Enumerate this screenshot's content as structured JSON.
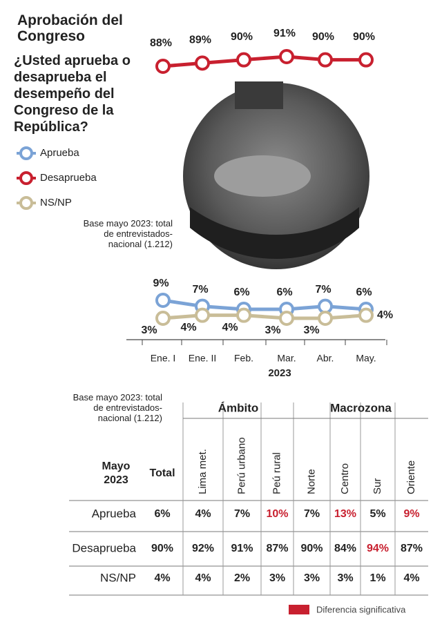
{
  "chart_data": {
    "type": "line",
    "title": "Aprobación del Congreso",
    "subtitle": "¿Usted aprueba o desaprueba el desempeño del Congreso de la República?",
    "note": "Base mayo 2023: total de entrevistados-nacional (1.212)",
    "categories": [
      "Ene. I",
      "Ene. II",
      "Feb.",
      "Mar.",
      "Abr.",
      "May."
    ],
    "x_label": "2023",
    "series": [
      {
        "name": "Aprueba",
        "color": "#7ba3d6",
        "values": [
          9,
          7,
          6,
          6,
          7,
          6
        ],
        "value_labels": [
          "9%",
          "7%",
          "6%",
          "6%",
          "7%",
          "6%"
        ]
      },
      {
        "name": "Desaprueba",
        "color": "#c8202f",
        "values": [
          88,
          89,
          90,
          91,
          90,
          90
        ],
        "value_labels": [
          "88%",
          "89%",
          "90%",
          "91%",
          "90%",
          "90%"
        ]
      },
      {
        "name": "NS/NP",
        "color": "#c9bd98",
        "values": [
          3,
          4,
          4,
          3,
          3,
          4
        ],
        "value_labels": [
          "3%",
          "4%",
          "4%",
          "3%",
          "3%",
          "4%"
        ]
      }
    ]
  },
  "table": {
    "note": "Base mayo 2023: total de entrevistados-nacional (1.212)",
    "corner": "Mayo 2023",
    "groups": [
      {
        "label": "Ámbito",
        "span": [
          1,
          3
        ]
      },
      {
        "label": "Macrozona",
        "span": [
          4,
          7
        ]
      }
    ],
    "columns": [
      "Total",
      "Lima met.",
      "Perú urbano",
      "Peú rural",
      "Norte",
      "Centro",
      "Sur",
      "Oriente"
    ],
    "highlight_color": "#c8202f",
    "rows": [
      {
        "label": "Aprueba",
        "cells": [
          {
            "text": "6%"
          },
          {
            "text": "4%"
          },
          {
            "text": "7%"
          },
          {
            "text": "10%",
            "significant": true
          },
          {
            "text": "7%"
          },
          {
            "text": "13%",
            "significant": true
          },
          {
            "text": "5%"
          },
          {
            "text": "9%",
            "significant": true
          }
        ]
      },
      {
        "label": "Desaprueba",
        "cells": [
          {
            "text": "90%"
          },
          {
            "text": "92%"
          },
          {
            "text": "91%"
          },
          {
            "text": "87%"
          },
          {
            "text": "90%"
          },
          {
            "text": "84%"
          },
          {
            "text": "94%",
            "significant": true
          },
          {
            "text": "87%"
          }
        ]
      },
      {
        "label": "NS/NP",
        "cells": [
          {
            "text": "4%"
          },
          {
            "text": "4%"
          },
          {
            "text": "2%"
          },
          {
            "text": "3%"
          },
          {
            "text": "3%"
          },
          {
            "text": "3%"
          },
          {
            "text": "1%"
          },
          {
            "text": "4%"
          }
        ]
      }
    ],
    "legend": "Diferencia significativa"
  }
}
